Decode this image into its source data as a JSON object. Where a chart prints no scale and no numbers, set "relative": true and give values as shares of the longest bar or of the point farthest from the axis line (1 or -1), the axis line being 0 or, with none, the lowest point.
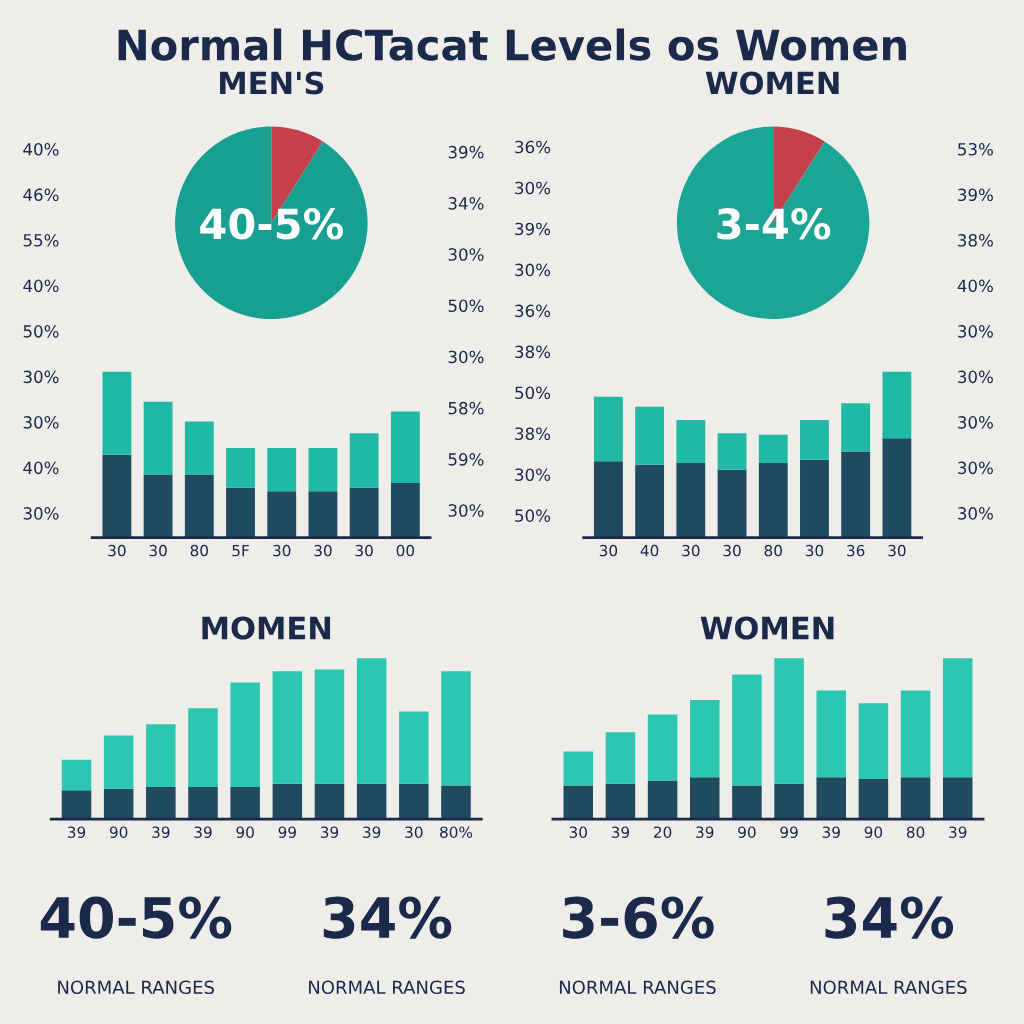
{
  "chart_data": [
    {
      "type": "other",
      "title": "Normal HCTacat Levels os Women"
    },
    {
      "type": "pie",
      "title": "MEN'S",
      "categories": [
        null,
        null
      ],
      "values": [
        9,
        91
      ],
      "colors": [
        "#c4404b",
        "#17a092"
      ],
      "annotations": [
        "40-5%"
      ]
    },
    {
      "type": "pie",
      "title": "WOMEN",
      "categories": [
        null,
        null
      ],
      "values": [
        9,
        91
      ],
      "colors": [
        "#c4404b",
        "#1aa595"
      ],
      "annotations": [
        "3-4%"
      ]
    },
    {
      "type": "other",
      "annotations": [
        "40%",
        "46%",
        "55%",
        "40%",
        "50%",
        "30%",
        "30%",
        "40%",
        "30%"
      ]
    },
    {
      "type": "bar",
      "stacked": true,
      "relative": true,
      "categories": [
        "30",
        "30",
        "80",
        "5F",
        "30",
        "30",
        "30",
        "00"
      ],
      "series": [
        {
          "color": "#1f4a5f",
          "values": [
            0.5,
            0.38,
            0.38,
            0.3,
            0.28,
            0.28,
            0.3,
            0.33
          ]
        },
        {
          "color": "#20b9a5",
          "values": [
            0.5,
            0.44,
            0.32,
            0.24,
            0.26,
            0.26,
            0.33,
            0.43
          ]
        }
      ]
    },
    {
      "type": "other",
      "annotations": [
        "39%",
        "34%",
        "30%",
        "50%",
        "30%",
        "58%",
        "59%",
        "30%"
      ]
    },
    {
      "type": "other",
      "annotations": [
        "36%",
        "30%",
        "39%",
        "30%",
        "36%",
        "38%",
        "50%",
        "38%",
        "30%",
        "50%"
      ]
    },
    {
      "type": "bar",
      "stacked": true,
      "relative": true,
      "categories": [
        "30",
        "40",
        "30",
        "30",
        "80",
        "30",
        "36",
        "30"
      ],
      "series": [
        {
          "color": "#1f4a5f",
          "values": [
            0.46,
            0.44,
            0.45,
            0.41,
            0.45,
            0.47,
            0.52,
            0.6
          ]
        },
        {
          "color": "#20b9a5",
          "values": [
            0.39,
            0.35,
            0.26,
            0.22,
            0.17,
            0.24,
            0.29,
            0.4
          ]
        }
      ]
    },
    {
      "type": "other",
      "annotations": [
        "53%",
        "39%",
        "38%",
        "40%",
        "30%",
        "30%",
        "30%",
        "30%",
        "30%"
      ]
    },
    {
      "type": "bar",
      "title": "MOMEN",
      "stacked": true,
      "relative": true,
      "categories": [
        "39",
        "90",
        "39",
        "39",
        "90",
        "99",
        "39",
        "39",
        "30",
        "80%"
      ],
      "series": [
        {
          "color": "#1f4a5f",
          "values": [
            0.18,
            0.19,
            0.2,
            0.2,
            0.2,
            0.22,
            0.22,
            0.22,
            0.22,
            0.21
          ]
        },
        {
          "color": "#2cc7b0",
          "values": [
            0.19,
            0.33,
            0.39,
            0.49,
            0.65,
            0.7,
            0.71,
            0.78,
            0.45,
            0.71
          ]
        }
      ]
    },
    {
      "type": "bar",
      "title": "WOMEN",
      "stacked": true,
      "relative": true,
      "categories": [
        "30",
        "39",
        "20",
        "39",
        "90",
        "99",
        "39",
        "90",
        "80",
        "39"
      ],
      "series": [
        {
          "color": "#1f4a5f",
          "values": [
            0.21,
            0.22,
            0.24,
            0.26,
            0.21,
            0.22,
            0.26,
            0.25,
            0.26,
            0.26
          ]
        },
        {
          "color": "#2cc7b0",
          "values": [
            0.21,
            0.32,
            0.41,
            0.48,
            0.69,
            0.78,
            0.54,
            0.47,
            0.54,
            0.74
          ]
        }
      ]
    },
    {
      "type": "other",
      "annotations": [
        "40-5%",
        "NORMAL RANGES",
        "34%",
        "NORMAL RANGES",
        "3-6%",
        "NORMAL RANGES",
        "34%",
        "NORMAL RANGES"
      ]
    }
  ]
}
